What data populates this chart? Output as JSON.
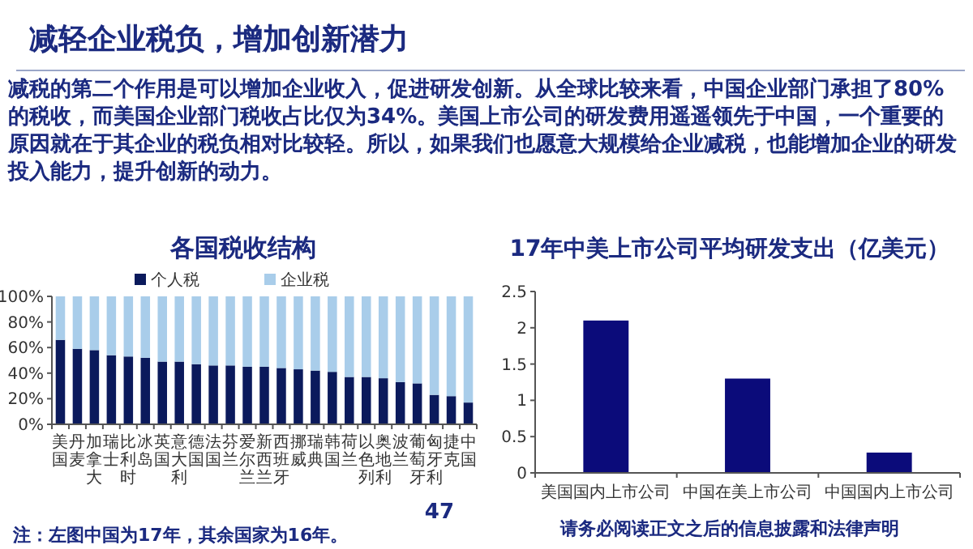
{
  "chart_data": [
    {
      "type": "other",
      "title": "减轻企业税负，增加创新潜力",
      "annotations": [
        "减税的第二个作用是可以增加企业收入，促进研发创新。从全球比较来看，中国企业部门承担了80%的税收，而美国企业部门税收占比仅为34%。美国上市公司的研发费用遥遥领先于中国，一个重要的原因就在于其企业的税负相对比较轻。所以，如果我们也愿意大规模给企业减税，也能增加企业的研发投入能力，提升创新的动力。",
        "47",
        "请务必阅读正文之后的信息披露和法律声明"
      ]
    },
    {
      "type": "bar",
      "title": "各国税收结构",
      "stacked": true,
      "legend": "top",
      "categories": [
        "美国",
        "丹麦",
        "加拿大",
        "瑞士",
        "比利时",
        "冰岛",
        "英国",
        "意大利",
        "德国",
        "法国",
        "芬兰",
        "爱尔兰",
        "新西兰",
        "西班牙",
        "挪威",
        "瑞典",
        "韩国",
        "荷兰",
        "以色列",
        "奥地利",
        "波兰",
        "葡萄牙",
        "匈牙利",
        "捷克",
        "中国"
      ],
      "series": [
        {
          "name": "个人税",
          "color": "#0b1a5c",
          "values": [
            66,
            59,
            58,
            54,
            53,
            52,
            49,
            49,
            47,
            46,
            46,
            45,
            45,
            44,
            43,
            42,
            41,
            37,
            37,
            36,
            33,
            32,
            23,
            22,
            17
          ]
        },
        {
          "name": "企业税",
          "color": "#a9cdea",
          "values": [
            34,
            41,
            42,
            46,
            47,
            48,
            51,
            51,
            53,
            54,
            54,
            55,
            55,
            56,
            57,
            58,
            59,
            63,
            63,
            64,
            67,
            68,
            77,
            78,
            83
          ]
        }
      ],
      "ylim": [
        0,
        100
      ],
      "yticks": [
        {
          "value": 0,
          "label": "0%"
        },
        {
          "value": 20,
          "label": "20%"
        },
        {
          "value": 40,
          "label": "40%"
        },
        {
          "value": 60,
          "label": "60%"
        },
        {
          "value": 80,
          "label": "80%"
        },
        {
          "value": 100,
          "label": "100%"
        }
      ],
      "annotations": [
        "注：左图中国为17年，其余国家为16年。"
      ]
    },
    {
      "type": "bar",
      "title": "17年中美上市公司平均研发支出（亿美元）",
      "categories": [
        "美国国内上市公司",
        "中国在美上市公司",
        "中国国内上市公司"
      ],
      "values": [
        2.1,
        1.3,
        0.28
      ],
      "color": "#0b0b7a",
      "ylim": [
        0,
        2.5
      ],
      "yticks": [
        0,
        0.5,
        1,
        1.5,
        2,
        2.5
      ]
    }
  ]
}
